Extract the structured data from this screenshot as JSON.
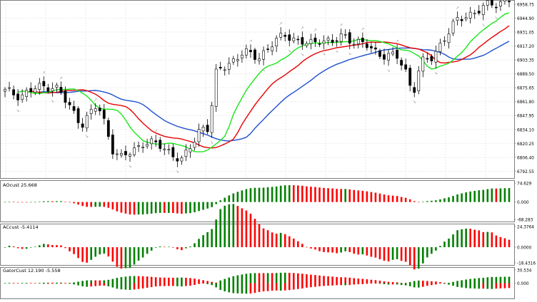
{
  "colors": {
    "bull": "#008000",
    "bear": "#ff0000",
    "wick": "#000000",
    "jaw": "#1f4fcf",
    "teeth": "#e60000",
    "lips": "#19e619",
    "fractal": "#9a9a9a",
    "grid": "#e9e9e9",
    "frame": "#7f7f7f",
    "text": "#000000"
  },
  "chart_data": [
    {
      "type": "candlestick",
      "panel": "main",
      "y_ticks": [
        "6958.75",
        "6944.90",
        "6931.05",
        "6917.20",
        "6903.35",
        "6889.50",
        "6875.65",
        "6861.80",
        "6847.95",
        "6834.10",
        "6820.25",
        "6806.40",
        "6792.55"
      ],
      "ylim": [
        6785,
        6963
      ],
      "grid": true,
      "overlays": [
        "jaw",
        "teeth",
        "lips",
        "fractals"
      ]
    },
    {
      "type": "bar",
      "panel": "ac",
      "label": "AOcust 25.668",
      "y_ticks": [
        "74.629",
        "0.000",
        "-68.283"
      ],
      "ylim": [
        -68.283,
        74.629
      ]
    },
    {
      "type": "bar",
      "panel": "ao",
      "label": "ACcust -5.4114",
      "y_ticks": [
        "24.3764",
        "0.0000",
        "-18.4316"
      ],
      "ylim": [
        -18.4316,
        24.3764
      ]
    },
    {
      "type": "bar",
      "panel": "gator",
      "label": "GatorCust 12.190 -5.558",
      "y_ticks": [
        "30.534",
        "0.000"
      ],
      "ylim": [
        -30.534,
        30.534
      ]
    }
  ]
}
